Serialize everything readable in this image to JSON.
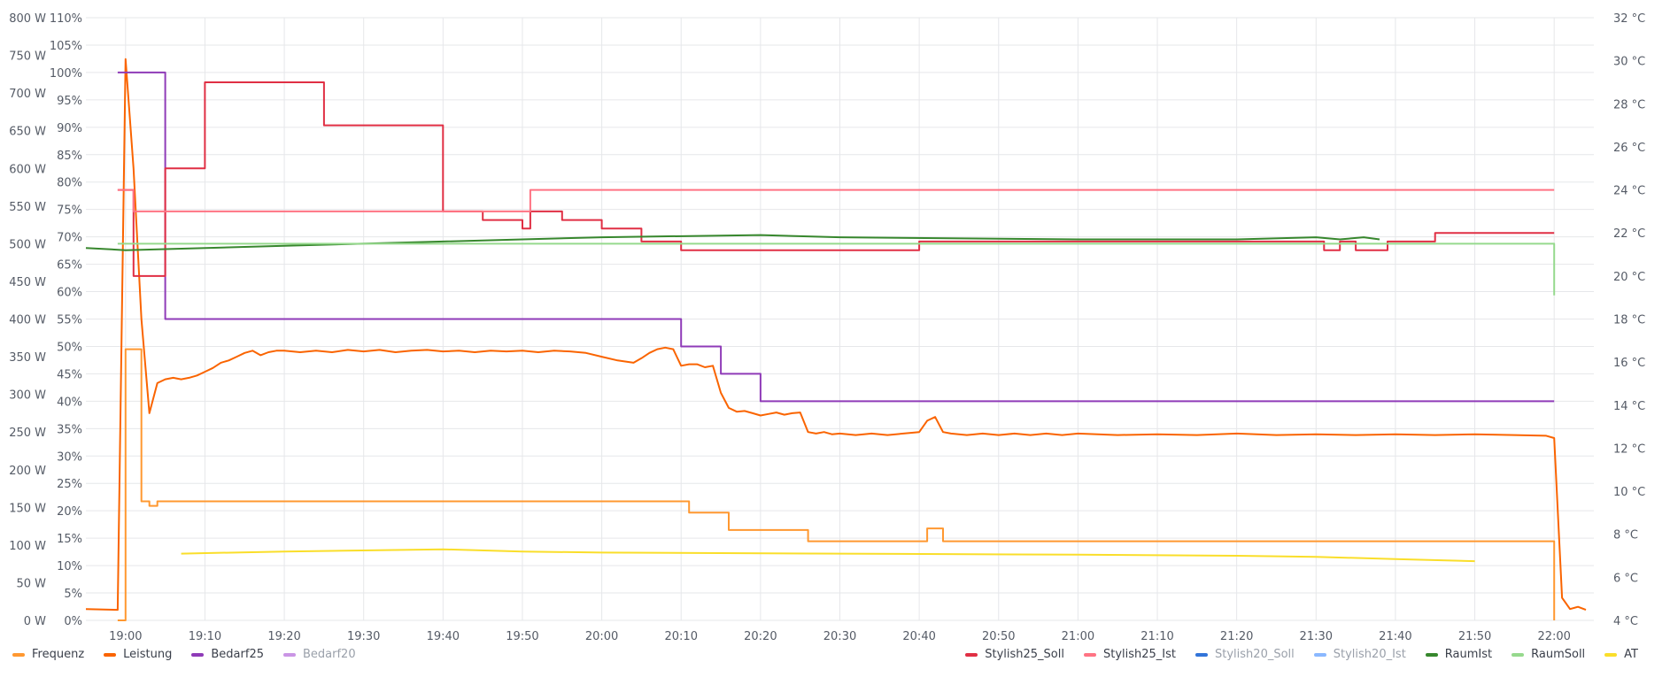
{
  "chart_data": {
    "type": "line",
    "x_range": [
      "18:55",
      "22:05"
    ],
    "x_ticks": [
      "19:00",
      "19:10",
      "19:20",
      "19:30",
      "19:40",
      "19:50",
      "20:00",
      "20:10",
      "20:20",
      "20:30",
      "20:40",
      "20:50",
      "21:00",
      "21:10",
      "21:20",
      "21:30",
      "21:40",
      "21:50",
      "22:00"
    ],
    "axes": {
      "watts": {
        "ylim": [
          0,
          800
        ],
        "ticks": [
          "0 W",
          "50 W",
          "100 W",
          "150 W",
          "200 W",
          "250 W",
          "300 W",
          "350 W",
          "400 W",
          "450 W",
          "500 W",
          "550 W",
          "600 W",
          "650 W",
          "700 W",
          "750 W",
          "800 W"
        ]
      },
      "percent": {
        "ylim": [
          0,
          110
        ],
        "ticks": [
          "0%",
          "5%",
          "10%",
          "15%",
          "20%",
          "25%",
          "30%",
          "35%",
          "40%",
          "45%",
          "50%",
          "55%",
          "60%",
          "65%",
          "70%",
          "75%",
          "80%",
          "85%",
          "90%",
          "95%",
          "100%",
          "105%",
          "110%"
        ]
      },
      "celsius": {
        "ylim": [
          4,
          32
        ],
        "ticks": [
          "4 °C",
          "6 °C",
          "8 °C",
          "10 °C",
          "12 °C",
          "14 °C",
          "16 °C",
          "18 °C",
          "20 °C",
          "22 °C",
          "24 °C",
          "26 °C",
          "28 °C",
          "30 °C",
          "32 °C"
        ]
      }
    },
    "grid": true,
    "legend_left": [
      {
        "name": "Frequenz",
        "color": "#ff9830",
        "visible": true
      },
      {
        "name": "Leistung",
        "color": "#fa6400",
        "visible": true
      },
      {
        "name": "Bedarf25",
        "color": "#8f3bb8",
        "visible": true
      },
      {
        "name": "Bedarf20",
        "color": "#ca95e5",
        "visible": false
      }
    ],
    "legend_right": [
      {
        "name": "Stylish25_Soll",
        "color": "#e02f44",
        "visible": true
      },
      {
        "name": "Stylish25_Ist",
        "color": "#ff7383",
        "visible": true
      },
      {
        "name": "Stylish20_Soll",
        "color": "#3274d9",
        "visible": false
      },
      {
        "name": "Stylish20_Ist",
        "color": "#8ab8ff",
        "visible": false
      },
      {
        "name": "RaumIst",
        "color": "#37872d",
        "visible": true
      },
      {
        "name": "RaumSoll",
        "color": "#96d98d",
        "visible": true
      },
      {
        "name": "AT",
        "color": "#fade2a",
        "visible": true
      }
    ],
    "series": [
      {
        "name": "Leistung",
        "axis": "watts",
        "color": "#fa6400",
        "step": false,
        "points": [
          [
            "18:55",
            15
          ],
          [
            "18:59",
            14
          ],
          [
            "19:00",
            745
          ],
          [
            "19:01",
            600
          ],
          [
            "19:02",
            400
          ],
          [
            "19:03",
            275
          ],
          [
            "19:04",
            315
          ],
          [
            "19:05",
            320
          ],
          [
            "19:06",
            322
          ],
          [
            "19:07",
            320
          ],
          [
            "19:08",
            322
          ],
          [
            "19:09",
            325
          ],
          [
            "19:10",
            330
          ],
          [
            "19:11",
            335
          ],
          [
            "19:12",
            342
          ],
          [
            "19:13",
            345
          ],
          [
            "19:14",
            350
          ],
          [
            "19:15",
            355
          ],
          [
            "19:16",
            358
          ],
          [
            "19:17",
            352
          ],
          [
            "19:18",
            356
          ],
          [
            "19:19",
            358
          ],
          [
            "19:20",
            358
          ],
          [
            "19:22",
            356
          ],
          [
            "19:24",
            358
          ],
          [
            "19:26",
            356
          ],
          [
            "19:28",
            359
          ],
          [
            "19:30",
            357
          ],
          [
            "19:32",
            359
          ],
          [
            "19:34",
            356
          ],
          [
            "19:36",
            358
          ],
          [
            "19:38",
            359
          ],
          [
            "19:40",
            357
          ],
          [
            "19:42",
            358
          ],
          [
            "19:44",
            356
          ],
          [
            "19:46",
            358
          ],
          [
            "19:48",
            357
          ],
          [
            "19:50",
            358
          ],
          [
            "19:52",
            356
          ],
          [
            "19:54",
            358
          ],
          [
            "19:56",
            357
          ],
          [
            "19:58",
            355
          ],
          [
            "20:00",
            350
          ],
          [
            "20:02",
            345
          ],
          [
            "20:04",
            342
          ],
          [
            "20:05",
            348
          ],
          [
            "20:06",
            355
          ],
          [
            "20:07",
            360
          ],
          [
            "20:08",
            362
          ],
          [
            "20:09",
            360
          ],
          [
            "20:10",
            338
          ],
          [
            "20:11",
            340
          ],
          [
            "20:12",
            340
          ],
          [
            "20:13",
            336
          ],
          [
            "20:14",
            338
          ],
          [
            "20:15",
            302
          ],
          [
            "20:16",
            282
          ],
          [
            "20:17",
            277
          ],
          [
            "20:18",
            278
          ],
          [
            "20:19",
            275
          ],
          [
            "20:20",
            272
          ],
          [
            "20:21",
            274
          ],
          [
            "20:22",
            276
          ],
          [
            "20:23",
            273
          ],
          [
            "20:24",
            275
          ],
          [
            "20:25",
            276
          ],
          [
            "20:26",
            250
          ],
          [
            "20:27",
            248
          ],
          [
            "20:28",
            250
          ],
          [
            "20:29",
            247
          ],
          [
            "20:30",
            248
          ],
          [
            "20:32",
            246
          ],
          [
            "20:34",
            248
          ],
          [
            "20:36",
            246
          ],
          [
            "20:38",
            248
          ],
          [
            "20:40",
            250
          ],
          [
            "20:41",
            265
          ],
          [
            "20:42",
            270
          ],
          [
            "20:43",
            250
          ],
          [
            "20:44",
            248
          ],
          [
            "20:46",
            246
          ],
          [
            "20:48",
            248
          ],
          [
            "20:50",
            246
          ],
          [
            "20:52",
            248
          ],
          [
            "20:54",
            246
          ],
          [
            "20:56",
            248
          ],
          [
            "20:58",
            246
          ],
          [
            "21:00",
            248
          ],
          [
            "21:05",
            246
          ],
          [
            "21:10",
            247
          ],
          [
            "21:15",
            246
          ],
          [
            "21:20",
            248
          ],
          [
            "21:25",
            246
          ],
          [
            "21:30",
            247
          ],
          [
            "21:35",
            246
          ],
          [
            "21:40",
            247
          ],
          [
            "21:45",
            246
          ],
          [
            "21:50",
            247
          ],
          [
            "21:55",
            246
          ],
          [
            "21:59",
            245
          ],
          [
            "22:00",
            242
          ],
          [
            "22:01",
            30
          ],
          [
            "22:02",
            15
          ],
          [
            "22:03",
            18
          ],
          [
            "22:04",
            14
          ]
        ]
      },
      {
        "name": "Frequenz",
        "axis": "watts",
        "color": "#ff9830",
        "step": true,
        "points": [
          [
            "18:59",
            0
          ],
          [
            "19:00",
            360
          ],
          [
            "19:02",
            158
          ],
          [
            "19:03",
            152
          ],
          [
            "19:04",
            158
          ],
          [
            "20:10",
            158
          ],
          [
            "20:11",
            143
          ],
          [
            "20:16",
            120
          ],
          [
            "20:26",
            105
          ],
          [
            "20:41",
            122
          ],
          [
            "20:43",
            105
          ],
          [
            "22:00",
            0
          ]
        ]
      },
      {
        "name": "Bedarf25",
        "axis": "percent",
        "color": "#8f3bb8",
        "step": true,
        "points": [
          [
            "18:59",
            100
          ],
          [
            "19:05",
            55
          ],
          [
            "20:10",
            50
          ],
          [
            "20:15",
            45
          ],
          [
            "20:20",
            40
          ],
          [
            "22:00",
            40
          ]
        ]
      },
      {
        "name": "Stylish25_Soll",
        "axis": "celsius",
        "color": "#e02f44",
        "step": true,
        "points": [
          [
            "18:59",
            24
          ],
          [
            "19:01",
            20
          ],
          [
            "19:05",
            25
          ],
          [
            "19:10",
            29
          ],
          [
            "19:25",
            27
          ],
          [
            "19:40",
            23
          ],
          [
            "19:45",
            22.6
          ],
          [
            "19:50",
            22.2
          ],
          [
            "19:51",
            23
          ],
          [
            "19:55",
            22.6
          ],
          [
            "20:00",
            22.2
          ],
          [
            "20:05",
            21.6
          ],
          [
            "20:10",
            21.2
          ],
          [
            "20:40",
            21.6
          ],
          [
            "21:31",
            21.2
          ],
          [
            "21:33",
            21.6
          ],
          [
            "21:35",
            21.2
          ],
          [
            "21:39",
            21.6
          ],
          [
            "21:45",
            22
          ],
          [
            "22:00",
            22
          ]
        ]
      },
      {
        "name": "Stylish25_Ist",
        "axis": "celsius",
        "color": "#ff7383",
        "step": true,
        "points": [
          [
            "18:59",
            24
          ],
          [
            "19:01",
            23
          ],
          [
            "19:51",
            24
          ],
          [
            "22:00",
            24
          ]
        ]
      },
      {
        "name": "RaumIst",
        "axis": "celsius",
        "color": "#37872d",
        "step": false,
        "points": [
          [
            "18:55",
            21.3
          ],
          [
            "19:00",
            21.2
          ],
          [
            "19:20",
            21.4
          ],
          [
            "19:40",
            21.6
          ],
          [
            "20:00",
            21.8
          ],
          [
            "20:20",
            21.9
          ],
          [
            "20:30",
            21.8
          ],
          [
            "21:00",
            21.7
          ],
          [
            "21:20",
            21.7
          ],
          [
            "21:30",
            21.8
          ],
          [
            "21:33",
            21.7
          ],
          [
            "21:36",
            21.8
          ],
          [
            "21:38",
            21.7
          ]
        ]
      },
      {
        "name": "RaumSoll",
        "axis": "celsius",
        "color": "#96d98d",
        "step": true,
        "points": [
          [
            "18:59",
            21.5
          ],
          [
            "22:00",
            21.5
          ],
          [
            "22:00",
            19.1
          ]
        ]
      },
      {
        "name": "AT",
        "axis": "celsius",
        "color": "#fade2a",
        "step": false,
        "points": [
          [
            "19:07",
            7.1
          ],
          [
            "19:20",
            7.2
          ],
          [
            "19:40",
            7.3
          ],
          [
            "19:50",
            7.2
          ],
          [
            "20:00",
            7.15
          ],
          [
            "20:30",
            7.1
          ],
          [
            "21:00",
            7.05
          ],
          [
            "21:20",
            7.0
          ],
          [
            "21:30",
            6.95
          ],
          [
            "21:40",
            6.85
          ],
          [
            "21:50",
            6.75
          ]
        ]
      }
    ]
  }
}
